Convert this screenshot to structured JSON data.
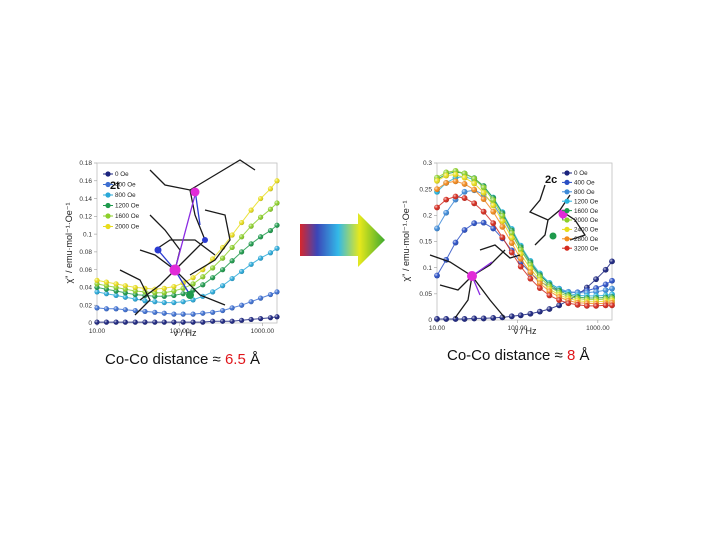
{
  "charts": [
    {
      "panel_label": "2t",
      "ylabel": "χ\" / emu·mol⁻¹·Oe⁻¹",
      "xlabel": "ν / Hz",
      "caption": {
        "prefix": "Co-Co distance ≈ ",
        "value": "6.5",
        "suffix": " Å"
      }
    },
    {
      "panel_label": "2c",
      "ylabel": "χ\" / emu·mol⁻¹·Oe⁻¹",
      "xlabel": "ν / Hz",
      "caption": {
        "prefix": "Co-Co distance ≈ ",
        "value": "8",
        "suffix": " Å"
      }
    }
  ],
  "chart_data": [
    {
      "type": "scatter",
      "scale_x": "log",
      "xlim": [
        10,
        1500
      ],
      "ylim": [
        0,
        0.18
      ],
      "xticks": [
        "10.00",
        "100.00",
        "1000.00"
      ],
      "yticks": [
        "0",
        "0.02",
        "0.04",
        "0.06",
        "0.08",
        "0.1",
        "0.12",
        "0.14",
        "0.16",
        "0.18"
      ],
      "x": [
        10,
        13,
        17,
        22,
        29,
        38,
        50,
        65,
        85,
        110,
        145,
        190,
        250,
        330,
        430,
        560,
        730,
        950,
        1250,
        1500
      ],
      "legend_position": "top-left",
      "series": [
        {
          "name": "0 Oe",
          "color": "#1a237e",
          "values": [
            0.001,
            0.001,
            0.001,
            0.001,
            0.001,
            0.001,
            0.001,
            0.001,
            0.001,
            0.001,
            0.001,
            0.001,
            0.002,
            0.002,
            0.002,
            0.003,
            0.004,
            0.005,
            0.006,
            0.007
          ]
        },
        {
          "name": "400 Oe",
          "color": "#3d6fd1",
          "values": [
            0.017,
            0.016,
            0.016,
            0.015,
            0.014,
            0.013,
            0.012,
            0.011,
            0.01,
            0.01,
            0.01,
            0.011,
            0.012,
            0.014,
            0.017,
            0.02,
            0.024,
            0.028,
            0.032,
            0.035
          ]
        },
        {
          "name": "800 Oe",
          "color": "#29a8d8",
          "values": [
            0.035,
            0.033,
            0.031,
            0.029,
            0.027,
            0.025,
            0.024,
            0.023,
            0.023,
            0.024,
            0.026,
            0.03,
            0.035,
            0.042,
            0.05,
            0.058,
            0.066,
            0.073,
            0.079,
            0.084
          ]
        },
        {
          "name": "1200 Oe",
          "color": "#1e9a4c",
          "values": [
            0.04,
            0.038,
            0.036,
            0.034,
            0.032,
            0.031,
            0.03,
            0.03,
            0.031,
            0.033,
            0.037,
            0.043,
            0.051,
            0.06,
            0.07,
            0.08,
            0.089,
            0.097,
            0.104,
            0.11
          ]
        },
        {
          "name": "1600 Oe",
          "color": "#8ccf2a",
          "values": [
            0.044,
            0.042,
            0.04,
            0.038,
            0.036,
            0.035,
            0.034,
            0.034,
            0.036,
            0.039,
            0.044,
            0.052,
            0.062,
            0.073,
            0.085,
            0.097,
            0.109,
            0.119,
            0.128,
            0.135
          ]
        },
        {
          "name": "2000 Oe",
          "color": "#e8dd1c",
          "values": [
            0.048,
            0.046,
            0.044,
            0.042,
            0.04,
            0.039,
            0.038,
            0.039,
            0.041,
            0.045,
            0.051,
            0.06,
            0.072,
            0.085,
            0.099,
            0.113,
            0.127,
            0.14,
            0.151,
            0.16
          ]
        }
      ]
    },
    {
      "type": "scatter",
      "scale_x": "log",
      "xlim": [
        10,
        1500
      ],
      "ylim": [
        0,
        0.3
      ],
      "xticks": [
        "10.00",
        "100.00",
        "1000.00"
      ],
      "yticks": [
        "0",
        "0.05",
        "0.1",
        "0.15",
        "0.2",
        "0.25",
        "0.3"
      ],
      "x": [
        10,
        13,
        17,
        22,
        29,
        38,
        50,
        65,
        85,
        110,
        145,
        190,
        250,
        330,
        430,
        560,
        730,
        950,
        1250,
        1500
      ],
      "legend_position": "top-right",
      "series": [
        {
          "name": "0 Oe",
          "color": "#1a237e",
          "values": [
            0.002,
            0.002,
            0.002,
            0.002,
            0.003,
            0.003,
            0.004,
            0.005,
            0.007,
            0.009,
            0.012,
            0.016,
            0.021,
            0.028,
            0.037,
            0.048,
            0.062,
            0.078,
            0.096,
            0.112
          ]
        },
        {
          "name": "400 Oe",
          "color": "#2a4fc4",
          "values": [
            0.085,
            0.115,
            0.148,
            0.172,
            0.185,
            0.186,
            0.175,
            0.156,
            0.133,
            0.11,
            0.09,
            0.074,
            0.063,
            0.056,
            0.053,
            0.053,
            0.056,
            0.061,
            0.068,
            0.075
          ]
        },
        {
          "name": "800 Oe",
          "color": "#3d8ad8",
          "values": [
            0.175,
            0.205,
            0.23,
            0.245,
            0.248,
            0.24,
            0.222,
            0.195,
            0.164,
            0.134,
            0.107,
            0.086,
            0.07,
            0.06,
            0.054,
            0.052,
            0.052,
            0.054,
            0.057,
            0.06
          ]
        },
        {
          "name": "1200 Oe",
          "color": "#27b3dd",
          "values": [
            0.245,
            0.262,
            0.272,
            0.274,
            0.268,
            0.255,
            0.234,
            0.206,
            0.174,
            0.142,
            0.113,
            0.089,
            0.071,
            0.059,
            0.051,
            0.047,
            0.046,
            0.046,
            0.047,
            0.049
          ]
        },
        {
          "name": "1600 Oe",
          "color": "#1e9a4c",
          "values": [
            0.268,
            0.279,
            0.283,
            0.28,
            0.271,
            0.256,
            0.233,
            0.204,
            0.171,
            0.139,
            0.11,
            0.086,
            0.068,
            0.056,
            0.048,
            0.044,
            0.042,
            0.042,
            0.043,
            0.044
          ]
        },
        {
          "name": "2000 Oe",
          "color": "#8ccf2a",
          "values": [
            0.272,
            0.282,
            0.285,
            0.28,
            0.27,
            0.253,
            0.229,
            0.199,
            0.166,
            0.134,
            0.105,
            0.082,
            0.064,
            0.052,
            0.045,
            0.041,
            0.039,
            0.039,
            0.04,
            0.041
          ]
        },
        {
          "name": "2400 Oe",
          "color": "#e8dd1c",
          "values": [
            0.266,
            0.276,
            0.278,
            0.272,
            0.261,
            0.243,
            0.219,
            0.189,
            0.157,
            0.126,
            0.098,
            0.076,
            0.059,
            0.048,
            0.041,
            0.037,
            0.035,
            0.035,
            0.036,
            0.037
          ]
        },
        {
          "name": "2800 Oe",
          "color": "#f28a1e",
          "values": [
            0.25,
            0.262,
            0.265,
            0.26,
            0.249,
            0.231,
            0.207,
            0.178,
            0.147,
            0.117,
            0.091,
            0.07,
            0.055,
            0.044,
            0.037,
            0.033,
            0.032,
            0.031,
            0.032,
            0.033
          ]
        },
        {
          "name": "3200 Oe",
          "color": "#d42a1e",
          "values": [
            0.215,
            0.23,
            0.236,
            0.233,
            0.223,
            0.207,
            0.185,
            0.158,
            0.129,
            0.102,
            0.079,
            0.061,
            0.047,
            0.038,
            0.032,
            0.029,
            0.027,
            0.027,
            0.028,
            0.028
          ]
        }
      ]
    }
  ]
}
